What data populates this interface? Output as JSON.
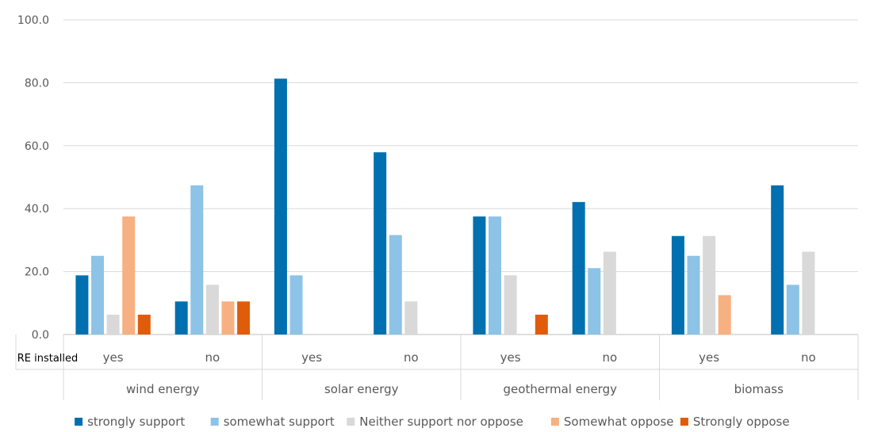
{
  "chart_data": {
    "type": "bar",
    "row_axis_label": "RE installed",
    "groups": [
      {
        "name": "wind energy",
        "categories": [
          "yes",
          "no"
        ]
      },
      {
        "name": "solar energy",
        "categories": [
          "yes",
          "no"
        ]
      },
      {
        "name": "geothermal energy",
        "categories": [
          "yes",
          "no"
        ]
      },
      {
        "name": "biomass",
        "categories": [
          "yes",
          "no"
        ]
      }
    ],
    "series": [
      {
        "name": "strongly support",
        "color": "#0070b0",
        "values": [
          18.8,
          10.5,
          81.3,
          57.9,
          37.5,
          42.1,
          31.3,
          47.4
        ]
      },
      {
        "name": "somewhat support",
        "color": "#8dc3e6",
        "values": [
          25.0,
          47.4,
          18.8,
          31.6,
          37.5,
          21.1,
          25.0,
          15.8
        ]
      },
      {
        "name": "Neither support nor oppose",
        "color": "#d9d9d9",
        "values": [
          6.3,
          15.8,
          0,
          10.5,
          18.8,
          26.3,
          31.3,
          26.3
        ]
      },
      {
        "name": "Somewhat oppose",
        "color": "#f7b082",
        "values": [
          37.5,
          10.5,
          0,
          0,
          0,
          0,
          12.5,
          0
        ]
      },
      {
        "name": "Strongly oppose",
        "color": "#e05c0a",
        "values": [
          6.3,
          10.5,
          0,
          0,
          6.3,
          0,
          0,
          0
        ]
      }
    ],
    "yticks": [
      "0.0",
      "20.0",
      "40.0",
      "60.0",
      "80.0",
      "100.0"
    ],
    "ylim": [
      0,
      100
    ],
    "grid": true,
    "legend_position": "bottom"
  }
}
